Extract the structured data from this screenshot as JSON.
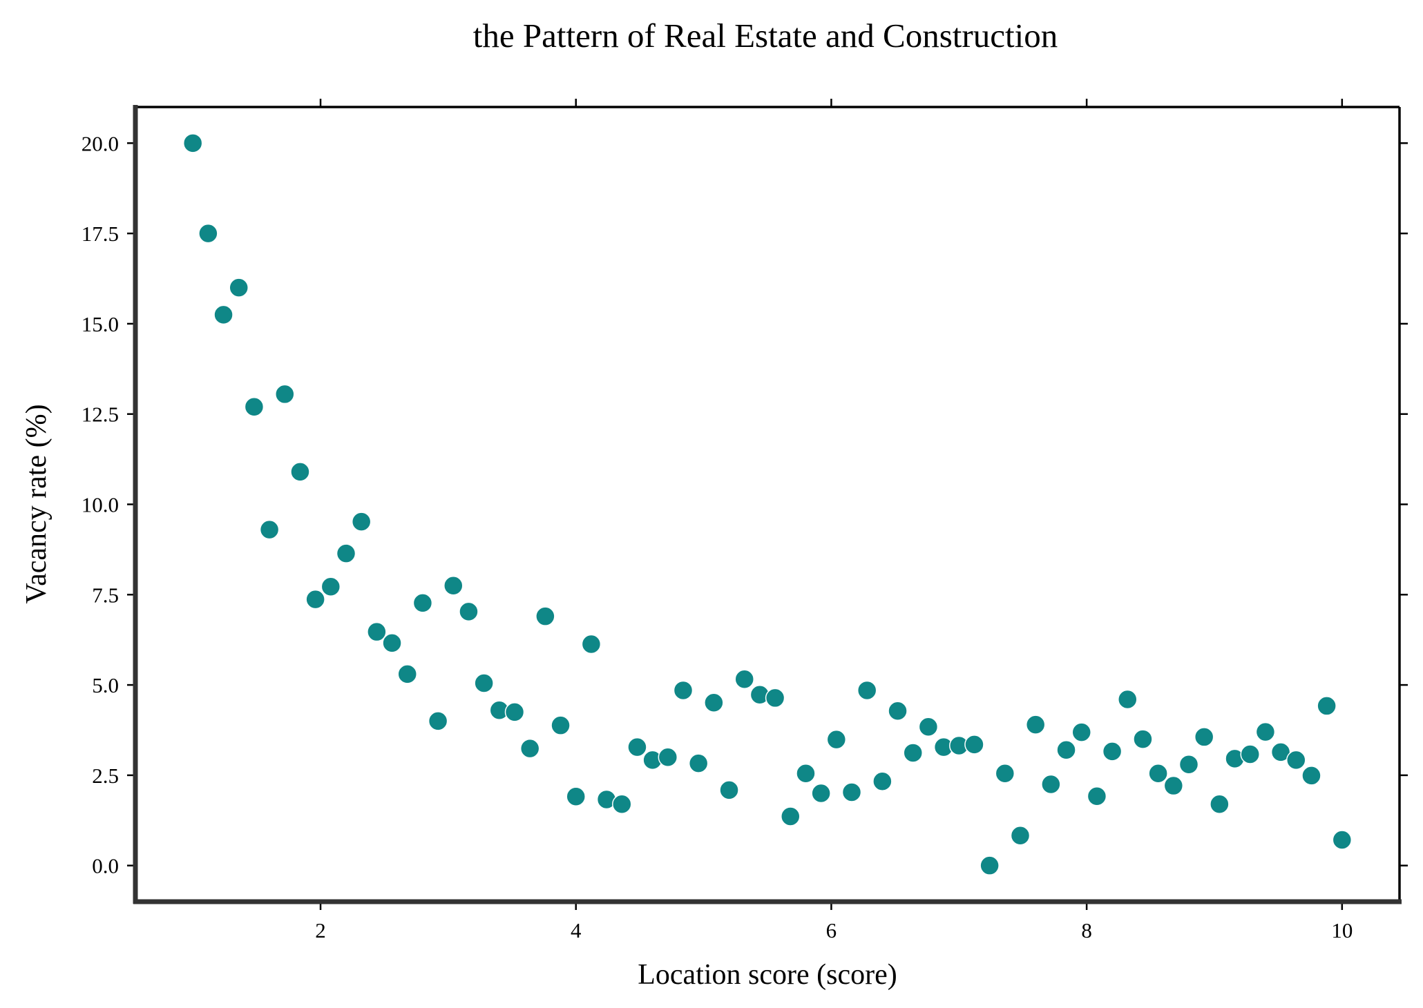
{
  "chart_data": {
    "type": "scatter",
    "title": "the Pattern of Real Estate and Construction",
    "xlabel": "Location score (score)",
    "ylabel": "Vacancy rate (%)",
    "xlim": [
      0.55,
      10.45
    ],
    "ylim": [
      -1.0,
      21.0
    ],
    "xticks": [
      2,
      4,
      6,
      8,
      10
    ],
    "xtick_labels": [
      "2",
      "4",
      "6",
      "8",
      "10"
    ],
    "yticks": [
      0.0,
      2.5,
      5.0,
      7.5,
      10.0,
      12.5,
      15.0,
      17.5,
      20.0
    ],
    "ytick_labels": [
      "0.0",
      "2.5",
      "5.0",
      "7.5",
      "10.0",
      "12.5",
      "15.0",
      "17.5",
      "20.0"
    ],
    "grid": false,
    "legend": "none",
    "marker_color": "#0f8787",
    "marker_edge_color": "#ffffff",
    "x": [
      1.0,
      1.12,
      1.24,
      1.36,
      1.48,
      1.6,
      1.72,
      1.84,
      1.96,
      2.08,
      2.2,
      2.32,
      2.44,
      2.56,
      2.68,
      2.8,
      2.92,
      3.04,
      3.16,
      3.28,
      3.4,
      3.52,
      3.64,
      3.76,
      3.88,
      4.0,
      4.12,
      4.24,
      4.36,
      4.48,
      4.6,
      4.72,
      4.84,
      4.96,
      5.08,
      5.2,
      5.32,
      5.44,
      5.56,
      5.68,
      5.8,
      5.92,
      6.04,
      6.16,
      6.28,
      6.4,
      6.52,
      6.64,
      6.76,
      6.88,
      7.0,
      7.12,
      7.24,
      7.36,
      7.48,
      7.6,
      7.72,
      7.84,
      7.96,
      8.08,
      8.2,
      8.32,
      8.44,
      8.56,
      8.68,
      8.8,
      8.92,
      9.04,
      9.16,
      9.28,
      9.4,
      9.52,
      9.64,
      9.76,
      9.88,
      10.0
    ],
    "y": [
      20.0,
      17.5,
      15.25,
      16.0,
      12.7,
      9.3,
      13.05,
      10.9,
      7.37,
      7.72,
      8.64,
      9.52,
      6.47,
      6.16,
      5.3,
      7.27,
      4.0,
      7.75,
      7.03,
      5.05,
      4.3,
      4.25,
      3.24,
      6.9,
      3.88,
      1.91,
      6.13,
      1.83,
      1.7,
      3.28,
      2.92,
      3.0,
      4.85,
      2.83,
      4.51,
      2.09,
      5.16,
      4.73,
      4.64,
      1.36,
      2.55,
      2.0,
      3.49,
      2.03,
      4.85,
      2.33,
      4.28,
      3.12,
      3.84,
      3.28,
      3.32,
      3.35,
      0.0,
      2.55,
      0.83,
      3.9,
      2.25,
      3.2,
      3.69,
      1.92,
      3.16,
      4.6,
      3.5,
      2.55,
      2.21,
      2.8,
      3.56,
      1.7,
      2.96,
      3.08,
      3.7,
      3.14,
      2.92,
      2.49,
      4.42,
      0.71
    ]
  }
}
